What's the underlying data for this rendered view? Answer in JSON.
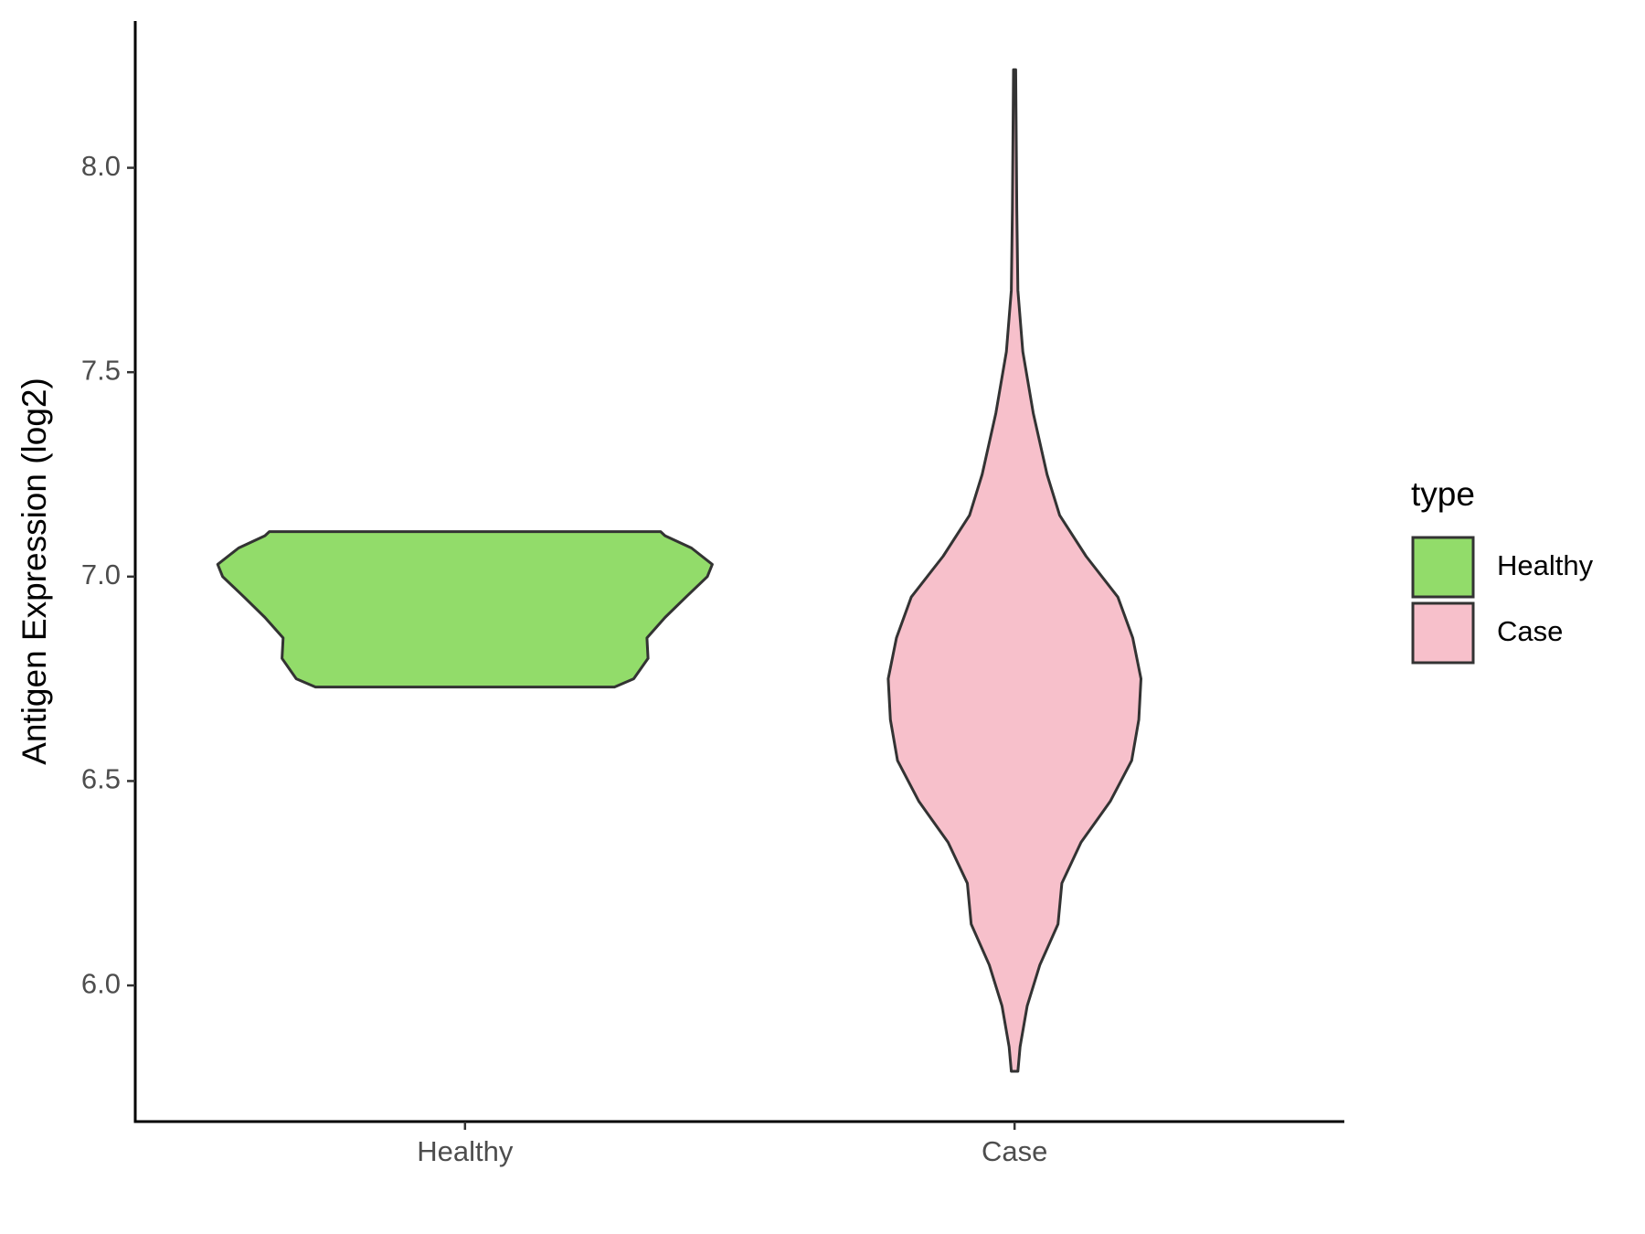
{
  "chart_data": {
    "type": "violin",
    "y_label": "Antigen Expression (log2)",
    "categories": [
      "Healthy",
      "Case"
    ],
    "legend_title": "type",
    "legend_position": "right",
    "ylim": [
      5.667,
      8.359
    ],
    "yticks": [
      {
        "value": 6,
        "label": "6.0"
      },
      6.5,
      {
        "value": 7,
        "label": "7.0"
      },
      7.5,
      {
        "value": 8,
        "label": "8.0"
      }
    ],
    "series": [
      {
        "name": "Healthy",
        "color": "#92dc6a",
        "y": [
          6.73,
          6.75,
          6.8,
          6.85,
          6.9,
          6.95,
          7.0,
          7.03,
          7.07,
          7.1,
          7.11
        ],
        "width": [
          0.272,
          0.307,
          0.333,
          0.331,
          0.364,
          0.402,
          0.441,
          0.45,
          0.412,
          0.364,
          0.356
        ]
      },
      {
        "name": "Case",
        "color": "#f7c0cb",
        "y": [
          5.79,
          5.85,
          5.95,
          6.05,
          6.15,
          6.25,
          6.35,
          6.45,
          6.55,
          6.65,
          6.75,
          6.85,
          6.95,
          7.05,
          7.15,
          7.25,
          7.4,
          7.55,
          7.7,
          7.9,
          8.24
        ],
        "width": [
          0.006,
          0.01,
          0.023,
          0.046,
          0.079,
          0.086,
          0.121,
          0.174,
          0.213,
          0.226,
          0.23,
          0.215,
          0.188,
          0.13,
          0.082,
          0.059,
          0.034,
          0.015,
          0.006,
          0.004,
          0.002
        ]
      }
    ]
  }
}
